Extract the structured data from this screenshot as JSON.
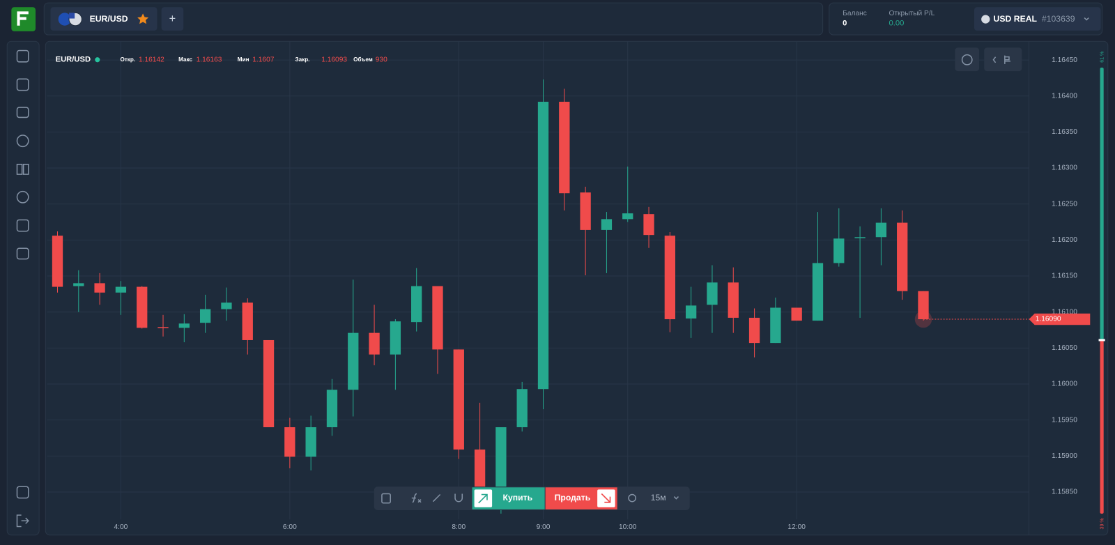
{
  "header": {
    "asset": "EUR/USD",
    "add": "+",
    "balance_label": "Баланс",
    "balance": "0",
    "pl_label": "Открытый P/L",
    "pl": "0.00",
    "account": "USD REAL",
    "account_id": "#103639"
  },
  "chart_info": {
    "asset": "EUR/USD",
    "items": [
      {
        "label": "Откр.",
        "value": "1.16142"
      },
      {
        "label": "Макс",
        "value": "1.16163"
      },
      {
        "label": "Мин",
        "value": "1.1607"
      },
      {
        "label": "Закр.",
        "value": "1.16093"
      },
      {
        "label": "Объем",
        "value": "930"
      }
    ]
  },
  "toolbar": {
    "buy": "Купить",
    "sell": "Продать",
    "timeframe": "15м"
  },
  "sentiment": {
    "up": {
      "value": 61,
      "label": "61 %"
    },
    "down": {
      "value": 39,
      "label": "39 %"
    }
  },
  "chart_data": {
    "type": "candlestick",
    "x": [
      3.25,
      3.5,
      3.75,
      4,
      4.25,
      4.5,
      4.75,
      5,
      5.25,
      5.5,
      5.75,
      6,
      6.25,
      6.5,
      6.75,
      7,
      7.25,
      7.5,
      7.75,
      8,
      8.25,
      8.5,
      8.75,
      9,
      9.25,
      9.5,
      9.75,
      10,
      10.25,
      10.5,
      10.75,
      11,
      11.25,
      11.5,
      11.75,
      12,
      12.25,
      12.5,
      12.75,
      13,
      13.25,
      13.5
    ],
    "open": [
      1.16206,
      1.16136,
      1.1614,
      1.16127,
      1.16135,
      1.16079,
      1.16078,
      1.16085,
      1.16104,
      1.16113,
      1.16061,
      1.1594,
      1.15899,
      1.1594,
      1.15992,
      1.16071,
      1.16041,
      1.16086,
      1.16136,
      1.16048,
      1.15909,
      1.15851,
      1.1594,
      1.15993,
      1.16392,
      1.16266,
      1.16214,
      1.16229,
      1.16236,
      1.16206,
      1.16091,
      1.1611,
      1.16141,
      1.16092,
      1.16057,
      1.16106,
      1.16088,
      1.16168,
      1.16203,
      1.16204,
      1.16224,
      1.16129
    ],
    "high": [
      1.16212,
      1.16158,
      1.16154,
      1.16143,
      1.16136,
      1.16096,
      1.16097,
      1.16124,
      1.16134,
      1.16119,
      1.16061,
      1.15953,
      1.15956,
      1.16007,
      1.16145,
      1.1611,
      1.1609,
      1.16161,
      1.16136,
      1.16048,
      1.15974,
      1.1594,
      1.16003,
      1.16423,
      1.1641,
      1.16274,
      1.16239,
      1.16302,
      1.16246,
      1.16211,
      1.16135,
      1.16165,
      1.16162,
      1.16105,
      1.1612,
      1.16106,
      1.16239,
      1.16244,
      1.16219,
      1.16244,
      1.16241,
      1.16129
    ],
    "low": [
      1.16127,
      1.161,
      1.1611,
      1.16096,
      1.16077,
      1.16066,
      1.16058,
      1.16071,
      1.16088,
      1.16041,
      1.1594,
      1.15883,
      1.1588,
      1.15928,
      1.15955,
      1.16026,
      1.15992,
      1.16073,
      1.16014,
      1.15896,
      1.15841,
      1.1582,
      1.15934,
      1.15965,
      1.16241,
      1.16151,
      1.16154,
      1.16225,
      1.16189,
      1.16072,
      1.16064,
      1.16071,
      1.16071,
      1.16037,
      1.16057,
      1.16088,
      1.16088,
      1.16163,
      1.16092,
      1.16165,
      1.16117,
      1.16088
    ],
    "close": [
      1.16135,
      1.1614,
      1.16127,
      1.16135,
      1.16078,
      1.16078,
      1.16084,
      1.16104,
      1.16113,
      1.16061,
      1.1594,
      1.15899,
      1.1594,
      1.15992,
      1.16071,
      1.16041,
      1.16087,
      1.16136,
      1.16048,
      1.15909,
      1.15851,
      1.1594,
      1.15993,
      1.16392,
      1.16265,
      1.16214,
      1.16229,
      1.16237,
      1.16207,
      1.1609,
      1.16109,
      1.16141,
      1.16092,
      1.16057,
      1.16106,
      1.16088,
      1.16168,
      1.16202,
      1.16204,
      1.16224,
      1.16129,
      1.1609
    ],
    "xlim": [
      3.125,
      14.75
    ],
    "xticks": [
      {
        "value": 4,
        "label": "4:00"
      },
      {
        "value": 6,
        "label": "6:00"
      },
      {
        "value": 8,
        "label": "8:00"
      },
      {
        "value": 9,
        "label": "9:00"
      },
      {
        "value": 10,
        "label": "10:00"
      },
      {
        "value": 12,
        "label": "12:00"
      }
    ],
    "ylim": [
      1.15812,
      1.16476
    ],
    "yticks": [
      {
        "value": 1.1585,
        "label": "1.15850"
      },
      {
        "value": 1.159,
        "label": "1.15900"
      },
      {
        "value": 1.1595,
        "label": "1.15950"
      },
      {
        "value": 1.16,
        "label": "1.16000"
      },
      {
        "value": 1.1605,
        "label": "1.16050"
      },
      {
        "value": 1.161,
        "label": "1.16100"
      },
      {
        "value": 1.1615,
        "label": "1.16150"
      },
      {
        "value": 1.162,
        "label": "1.16200"
      },
      {
        "value": 1.1625,
        "label": "1.16250"
      },
      {
        "value": 1.163,
        "label": "1.16300"
      },
      {
        "value": 1.1635,
        "label": "1.16350"
      },
      {
        "value": 1.164,
        "label": "1.16400"
      },
      {
        "value": 1.1645,
        "label": "1.16450"
      }
    ],
    "grid": true,
    "up_color": "#26a88e",
    "down_color": "#f04b4b",
    "last_price": {
      "value": 1.1609,
      "label": "1.16090"
    }
  }
}
